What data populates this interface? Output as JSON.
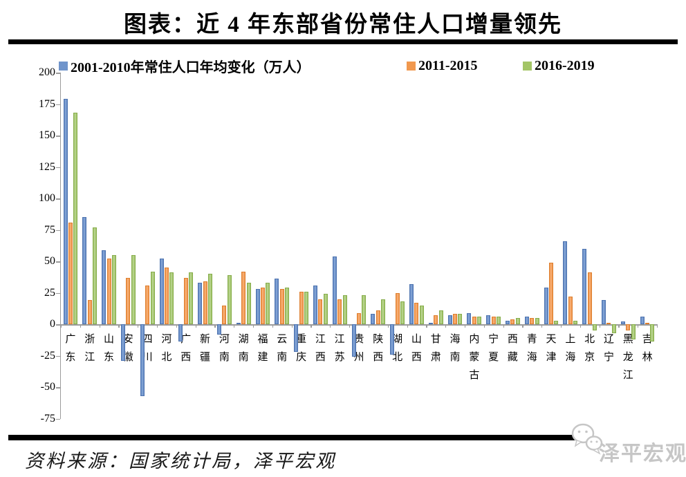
{
  "title": "图表：近 4 年东部省份常住人口增量领先",
  "source_note": "资料来源：国家统计局，泽平宏观",
  "watermark": "泽平宏观",
  "colors": {
    "series_blue": "#6f94cb",
    "series_orange": "#f1984e",
    "series_green": "#a3c566",
    "axis_gray": "#9b9b9b",
    "rule_black": "#000000",
    "watermark_gray": "#c6c6c6"
  },
  "legend": [
    {
      "label": "2001-2010年常住人口年均变化（万人）",
      "color": "#6f94cb"
    },
    {
      "label": "2011-2015",
      "color": "#f1984e"
    },
    {
      "label": "2016-2019",
      "color": "#a3c566"
    }
  ],
  "chart_data": {
    "type": "bar",
    "unit": "万人",
    "title": "图表：近 4 年东部省份常住人口增量领先",
    "xlabel": "",
    "ylabel": "",
    "ylim": [
      -75,
      200
    ],
    "ytick_step": 25,
    "yticks": [
      200,
      175,
      150,
      125,
      100,
      75,
      50,
      25,
      0,
      -25,
      -50,
      -75
    ],
    "grid": false,
    "legend_position": "top",
    "categories": [
      "广东",
      "浙江",
      "山东",
      "安徽",
      "四川",
      "河北",
      "广西",
      "新疆",
      "河南",
      "湖南",
      "福建",
      "云南",
      "重庆",
      "江西",
      "江苏",
      "贵州",
      "陕西",
      "湖北",
      "山西",
      "甘肃",
      "海南",
      "内蒙古",
      "宁夏",
      "西藏",
      "青海",
      "天津",
      "上海",
      "北京",
      "辽宁",
      "黑龙江",
      "吉林"
    ],
    "series": [
      {
        "name": "2001-2010年常住人口年均变化（万人）",
        "color": "#6f94cb",
        "values": [
          179,
          85,
          59,
          -29,
          -57,
          52,
          -14,
          33,
          -8,
          1,
          28,
          36,
          -22,
          31,
          54,
          -26,
          8,
          -24,
          32,
          1,
          7,
          9,
          7,
          3,
          6,
          29,
          66,
          60,
          19,
          2,
          6
        ]
      },
      {
        "name": "2011-2015",
        "color": "#f1984e",
        "values": [
          81,
          19,
          52,
          37,
          31,
          45,
          37,
          34,
          15,
          42,
          29,
          28,
          26,
          20,
          20,
          9,
          11,
          25,
          17,
          7,
          8,
          6,
          6,
          4,
          5,
          49,
          22,
          41,
          1,
          -5,
          1
        ]
      },
      {
        "name": "2016-2019",
        "color": "#a3c566",
        "values": [
          168,
          77,
          55,
          55,
          42,
          41,
          41,
          40,
          39,
          33,
          33,
          29,
          26,
          24,
          23,
          23,
          20,
          18,
          15,
          11,
          8,
          6,
          6,
          5,
          5,
          3,
          3,
          -5,
          -7,
          -12,
          -14
        ]
      }
    ]
  }
}
